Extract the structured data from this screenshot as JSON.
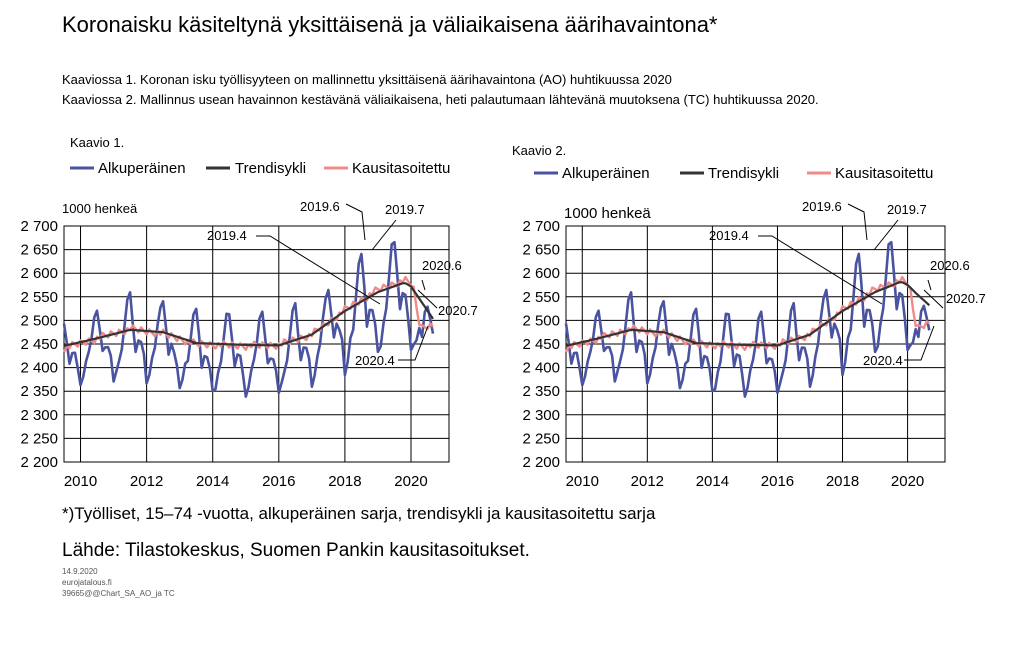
{
  "title": "Koronaisku käsiteltynä yksittäisenä ja väliaikaisena äärihavaintona*",
  "description_lines": [
    "Kaaviossa 1. Koronan isku työllisyyteen on mallinnettu yksittäisenä äärihavaintona (AO) huhtikuussa 2020",
    "Kaaviossa 2. Mallinnus usean havainnon kestävänä väliaikaisena, heti palautumaan lähtevänä muutoksena (TC) huhtikuussa 2020."
  ],
  "footnote": "*)Työlliset, 15–74 -vuotta, alkuperäinen sarja, trendisykli ja kausitasoitettu sarja",
  "source": "Lähde: Tilastokeskus, Suomen Pankin kausitasoitukset.",
  "meta": [
    "14.9.2020",
    "eurojatalous.fi",
    "39665@@Chart_SA_AO_ja TC"
  ],
  "colors": {
    "original": "#4a53a0",
    "trend": "#333333",
    "seasonal": "#f08a8a"
  },
  "chart_data": [
    {
      "type": "line",
      "panel_label": "Kaavio 1.",
      "unit_label": "1000 henkeä",
      "legend": [
        "Alkuperäinen",
        "Trendisykli",
        "Kausitasoitettu"
      ],
      "ylim": [
        2200,
        2700
      ],
      "yticks": [
        "2 700",
        "2 650",
        "2 600",
        "2 550",
        "2 500",
        "2 450",
        "2 400",
        "2 350",
        "2 300",
        "2 250",
        "2 200"
      ],
      "xticks": [
        "2010",
        "2012",
        "2014",
        "2016",
        "2018",
        "2020"
      ],
      "annotations": [
        "2019.6",
        "2019.7",
        "2019.4",
        "2020.6",
        "2020.7",
        "2020.4"
      ],
      "series": [
        {
          "name": "Alkuperäinen",
          "profile": [
            -95,
            -80,
            -50,
            -32,
            10,
            55,
            65,
            15,
            -40,
            -20,
            -25,
            -50
          ]
        },
        {
          "name": "Trendisykli",
          "anchors": [
            [
              2009.0,
              2438
            ],
            [
              2010.5,
              2462
            ],
            [
              2011.5,
              2480
            ],
            [
              2012.5,
              2475
            ],
            [
              2013.5,
              2452
            ],
            [
              2015.0,
              2448
            ],
            [
              2016.0,
              2447
            ],
            [
              2017.0,
              2470
            ],
            [
              2018.0,
              2520
            ],
            [
              2019.0,
              2560
            ],
            [
              2019.8,
              2580
            ],
            [
              2020.0,
              2572
            ],
            [
              2020.7,
              2500
            ]
          ]
        },
        {
          "name": "Kausitasoitettu",
          "anchors": [
            [
              2009.0,
              2430
            ],
            [
              2010.5,
              2462
            ],
            [
              2011.5,
              2482
            ],
            [
              2012.5,
              2472
            ],
            [
              2013.5,
              2450
            ],
            [
              2015.0,
              2446
            ],
            [
              2016.0,
              2448
            ],
            [
              2017.0,
              2470
            ],
            [
              2018.0,
              2522
            ],
            [
              2019.0,
              2565
            ],
            [
              2019.8,
              2585
            ],
            [
              2020.0,
              2578
            ],
            [
              2020.1,
              2562
            ],
            [
              2020.2,
              2510
            ],
            [
              2020.3,
              2484
            ],
            [
              2020.5,
              2490
            ],
            [
              2020.7,
              2490
            ]
          ]
        }
      ]
    },
    {
      "type": "line",
      "panel_label": "Kaavio 2.",
      "unit_label": "1000 henkeä",
      "legend": [
        "Alkuperäinen",
        "Trendisykli",
        "Kausitasoitettu"
      ],
      "ylim": [
        2200,
        2700
      ],
      "yticks": [
        "2 700",
        "2 650",
        "2 600",
        "2 550",
        "2 500",
        "2 450",
        "2 400",
        "2 350",
        "2 300",
        "2 250",
        "2 200"
      ],
      "xticks": [
        "2010",
        "2012",
        "2014",
        "2016",
        "2018",
        "2020"
      ],
      "annotations": [
        "2019.6",
        "2019.7",
        "2019.4",
        "2020.6",
        "2020.7",
        "2020.4"
      ],
      "series": [
        {
          "name": "Alkuperäinen",
          "profile": [
            -95,
            -80,
            -50,
            -32,
            10,
            55,
            65,
            15,
            -40,
            -20,
            -25,
            -50
          ]
        },
        {
          "name": "Trendisykli",
          "anchors": [
            [
              2009.0,
              2438
            ],
            [
              2010.5,
              2462
            ],
            [
              2011.5,
              2480
            ],
            [
              2012.5,
              2475
            ],
            [
              2013.5,
              2452
            ],
            [
              2015.0,
              2448
            ],
            [
              2016.0,
              2447
            ],
            [
              2017.0,
              2470
            ],
            [
              2018.0,
              2520
            ],
            [
              2019.0,
              2560
            ],
            [
              2019.8,
              2582
            ],
            [
              2020.0,
              2575
            ],
            [
              2020.3,
              2555
            ],
            [
              2020.7,
              2530
            ]
          ]
        },
        {
          "name": "Kausitasoitettu",
          "anchors": [
            [
              2009.0,
              2430
            ],
            [
              2010.5,
              2462
            ],
            [
              2011.5,
              2482
            ],
            [
              2012.5,
              2472
            ],
            [
              2013.5,
              2450
            ],
            [
              2015.0,
              2446
            ],
            [
              2016.0,
              2448
            ],
            [
              2017.0,
              2470
            ],
            [
              2018.0,
              2522
            ],
            [
              2019.0,
              2565
            ],
            [
              2019.8,
              2585
            ],
            [
              2020.0,
              2578
            ],
            [
              2020.1,
              2560
            ],
            [
              2020.2,
              2505
            ],
            [
              2020.3,
              2484
            ],
            [
              2020.5,
              2492
            ],
            [
              2020.7,
              2498
            ]
          ]
        }
      ]
    }
  ]
}
